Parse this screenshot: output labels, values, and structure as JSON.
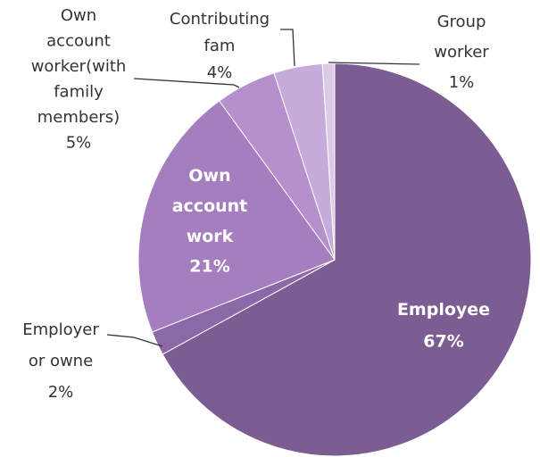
{
  "chart_data": {
    "type": "pie",
    "categories": [
      "Employee",
      "Employer\nor owne",
      "Own\naccount\nwork",
      "Own\naccount\nworker(with\nfamily\nmembers)",
      "Contributing\nfam",
      "Group\nworker"
    ],
    "values": [
      67,
      2,
      21,
      5,
      4,
      1
    ],
    "value_labels": [
      "67%",
      "2%",
      "21%",
      "5%",
      "4%",
      "1%"
    ],
    "colors": [
      "#7b5c93",
      "#8c68a6",
      "#a47ebe",
      "#b590cc",
      "#c6acdb",
      "#dccbe8"
    ]
  }
}
